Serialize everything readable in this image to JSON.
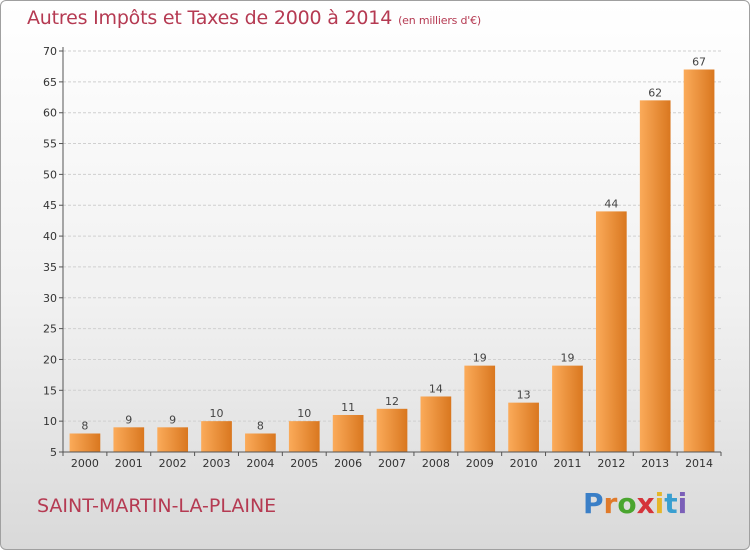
{
  "title": {
    "main": "Autres Impôts et Taxes de 2000 à 2014",
    "sub": "(en milliers d'€)"
  },
  "commune": "SAINT-MARTIN-LA-PLAINE",
  "logo": "Proxiti",
  "colors": {
    "title": "#b53a52",
    "bar_light": "#fbab5a",
    "bar_dark": "#d9771f",
    "grid": "#d0d0d0"
  },
  "chart_data": {
    "type": "bar",
    "title": "Autres Impôts et Taxes de 2000 à 2014",
    "subtitle": "(en milliers d'€)",
    "categories": [
      "2000",
      "2001",
      "2002",
      "2003",
      "2004",
      "2005",
      "2006",
      "2007",
      "2008",
      "2009",
      "2010",
      "2011",
      "2012",
      "2013",
      "2014"
    ],
    "values": [
      8,
      9,
      9,
      10,
      8,
      10,
      11,
      12,
      14,
      19,
      13,
      19,
      44,
      62,
      67
    ],
    "data_labels": [
      "8",
      "9",
      "9",
      "10",
      "8",
      "10",
      "11",
      "12",
      "14",
      "19",
      "13",
      "19",
      "44",
      "62",
      "67"
    ],
    "yticks": [
      5,
      10,
      15,
      20,
      25,
      30,
      35,
      40,
      45,
      50,
      55,
      60,
      65,
      70
    ],
    "ylim": [
      5,
      70
    ],
    "xlabel": "",
    "ylabel": "",
    "grid": true
  }
}
